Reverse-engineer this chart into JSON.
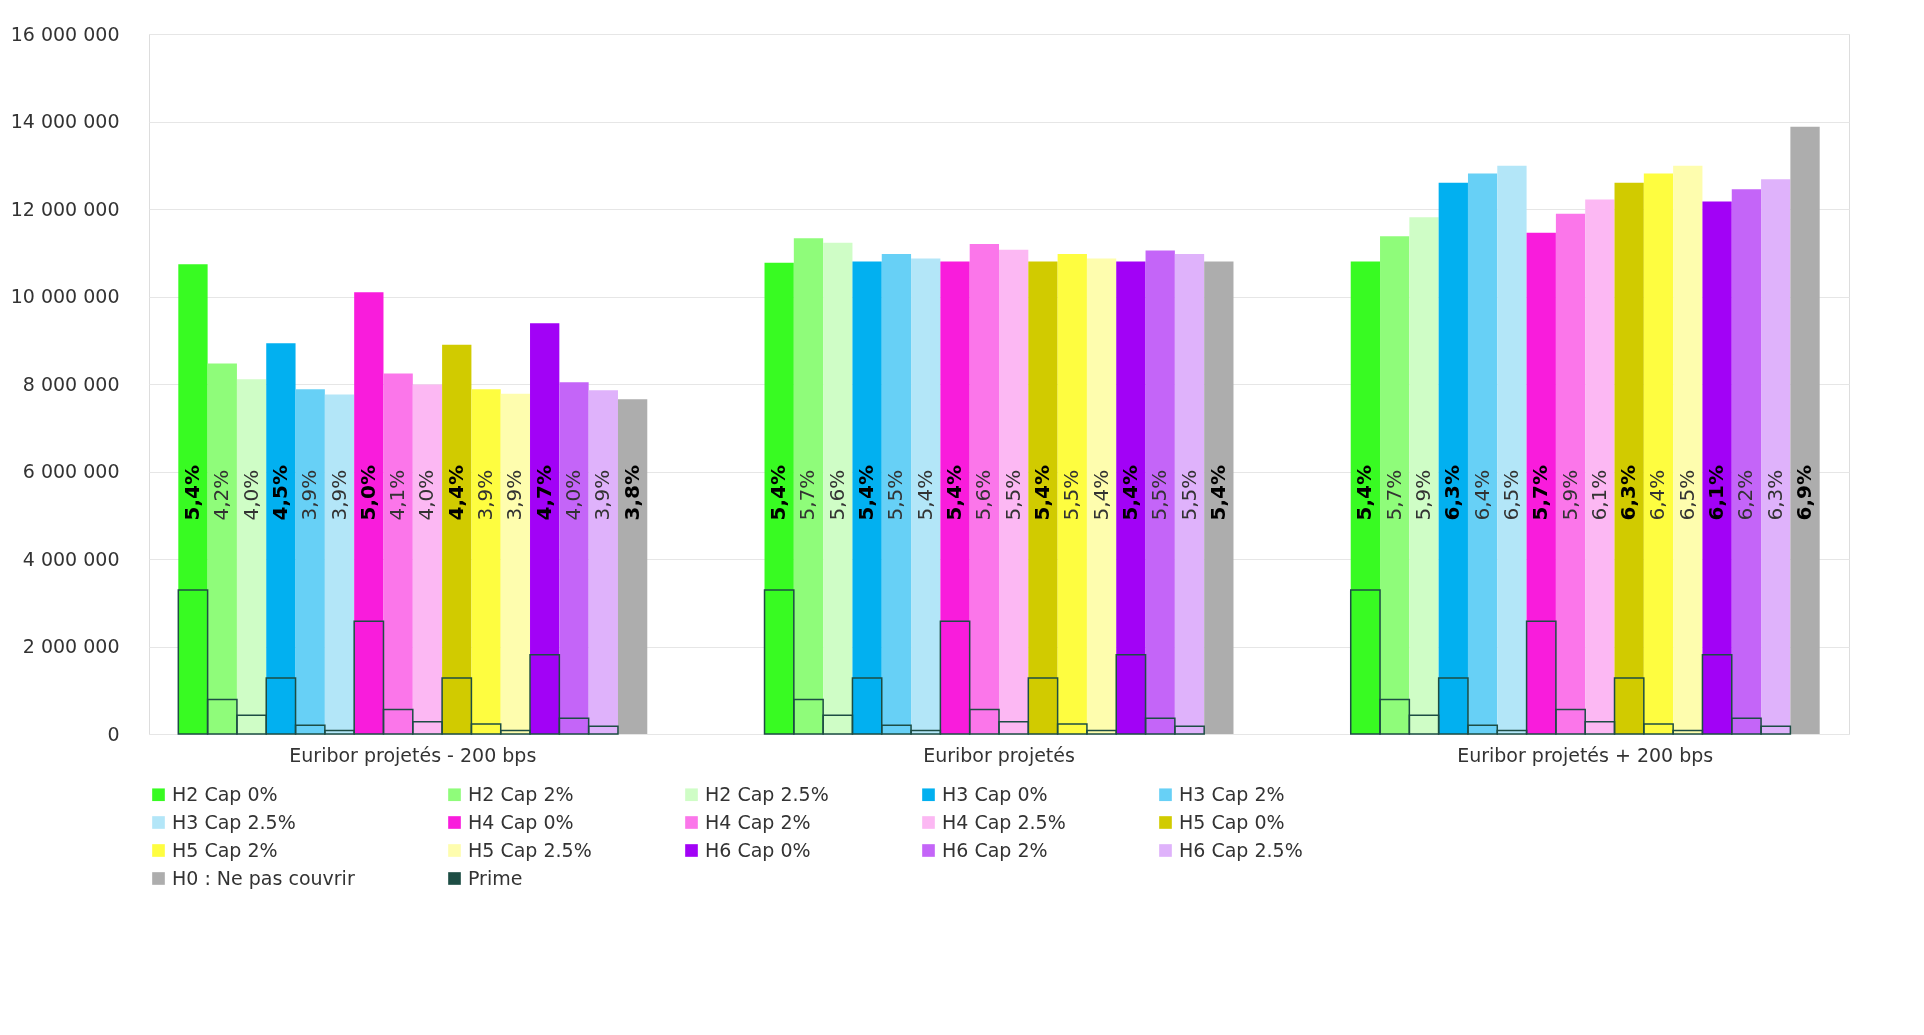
{
  "chart_data": {
    "type": "bar",
    "categories": [
      "Euribor projetés - 200 bps",
      "Euribor projetés",
      "Euribor projetés + 200 bps"
    ],
    "ylim": [
      0,
      16000000
    ],
    "yticks": [
      {
        "value": 0,
        "label": "0"
      },
      {
        "value": 2000000,
        "label": "2 000 000"
      },
      {
        "value": 4000000,
        "label": "4 000 000"
      },
      {
        "value": 6000000,
        "label": "6 000 000"
      },
      {
        "value": 8000000,
        "label": "8 000 000"
      },
      {
        "value": 10000000,
        "label": "10 000 000"
      },
      {
        "value": 12000000,
        "label": "12 000 000"
      },
      {
        "value": 14000000,
        "label": "14 000 000"
      },
      {
        "value": 16000000,
        "label": "16 000 000"
      }
    ],
    "grid": "y",
    "legend": "bottom",
    "annotations": [
      "5,4%",
      "4,2%",
      "4,0%",
      "4,5%",
      "3,9%",
      "3,9%",
      "5,0%",
      "4,1%",
      "4,0%",
      "4,4%",
      "3,9%",
      "3,9%",
      "4,7%",
      "4,0%",
      "3,9%",
      "3,8%",
      "5,4%",
      "5,7%",
      "5,6%",
      "5,4%",
      "5,5%",
      "5,4%",
      "5,4%",
      "5,6%",
      "5,5%",
      "5,4%",
      "5,5%",
      "5,4%",
      "5,4%",
      "5,5%",
      "5,5%",
      "5,4%",
      "5,4%",
      "5,7%",
      "5,9%",
      "6,3%",
      "6,4%",
      "6,5%",
      "5,7%",
      "5,9%",
      "6,1%",
      "6,3%",
      "6,4%",
      "6,5%",
      "6,1%",
      "6,2%",
      "6,3%",
      "6,9%"
    ],
    "series": [
      {
        "name": "H2 Cap 0%",
        "color": "#38fb22",
        "values": [
          10740000,
          10770000,
          10800000
        ]
      },
      {
        "name": "H2 Cap 2%",
        "color": "#8ffc7a",
        "values": [
          8470000,
          11330000,
          11380000
        ]
      },
      {
        "name": "H2 Cap 2.5%",
        "color": "#cffdc6",
        "values": [
          8110000,
          11230000,
          11810000
        ]
      },
      {
        "name": "H3 Cap 0%",
        "color": "#02b0f0",
        "values": [
          8930000,
          10800000,
          12600000
        ]
      },
      {
        "name": "H3 Cap 2%",
        "color": "#67d0f6",
        "values": [
          7880000,
          10970000,
          12810000
        ]
      },
      {
        "name": "H3 Cap 2.5%",
        "color": "#b3e6f8",
        "values": [
          7760000,
          10870000,
          12990000
        ]
      },
      {
        "name": "H4 Cap 0%",
        "color": "#f91cdc",
        "values": [
          10100000,
          10800000,
          11460000
        ]
      },
      {
        "name": "H4 Cap 2%",
        "color": "#fb76ea",
        "values": [
          8240000,
          11200000,
          11890000
        ]
      },
      {
        "name": "H4 Cap 2.5%",
        "color": "#fcb8f3",
        "values": [
          7990000,
          11070000,
          12220000
        ]
      },
      {
        "name": "H5 Cap 0%",
        "color": "#d1cb00",
        "values": [
          8900000,
          10800000,
          12600000
        ]
      },
      {
        "name": "H5 Cap 2%",
        "color": "#fefd40",
        "values": [
          7880000,
          10970000,
          12810000
        ]
      },
      {
        "name": "H5 Cap 2.5%",
        "color": "#fefdae",
        "values": [
          7780000,
          10870000,
          12990000
        ]
      },
      {
        "name": "H6 Cap 0%",
        "color": "#a202f6",
        "values": [
          9390000,
          10800000,
          12170000
        ]
      },
      {
        "name": "H6 Cap 2%",
        "color": "#c465f8",
        "values": [
          8040000,
          11050000,
          12450000
        ]
      },
      {
        "name": "H6 Cap 2.5%",
        "color": "#dfb2fb",
        "values": [
          7860000,
          10970000,
          12680000
        ]
      },
      {
        "name": "H0 : Ne pas couvrir",
        "color": "#adadad",
        "values": [
          7650000,
          10800000,
          13880000
        ]
      },
      {
        "name": "Prime",
        "color": "#1d4d44",
        "values": [
          3290000,
          3290000,
          3290000
        ]
      },
      {
        "color": "#1d4d44",
        "values": [
          790000,
          790000,
          790000
        ]
      },
      {
        "color": "#1d4d44",
        "values": [
          430000,
          430000,
          430000
        ]
      },
      {
        "color": "#1d4d44",
        "values": [
          1280000,
          1280000,
          1280000
        ]
      },
      {
        "color": "#1d4d44",
        "values": [
          200000,
          200000,
          200000
        ]
      },
      {
        "color": "#1d4d44",
        "values": [
          80000,
          80000,
          80000
        ]
      },
      {
        "color": "#1d4d44",
        "values": [
          2580000,
          2580000,
          2580000
        ]
      },
      {
        "color": "#1d4d44",
        "values": [
          560000,
          560000,
          560000
        ]
      },
      {
        "color": "#1d4d44",
        "values": [
          280000,
          280000,
          280000
        ]
      },
      {
        "color": "#1d4d44",
        "values": [
          1280000,
          1280000,
          1280000
        ]
      },
      {
        "color": "#1d4d44",
        "values": [
          230000,
          230000,
          230000
        ]
      },
      {
        "color": "#1d4d44",
        "values": [
          80000,
          80000,
          80000
        ]
      },
      {
        "color": "#1d4d44",
        "values": [
          1810000,
          1810000,
          1810000
        ]
      },
      {
        "color": "#1d4d44",
        "values": [
          360000,
          360000,
          360000
        ]
      },
      {
        "color": "#1d4d44",
        "values": [
          180000,
          180000,
          180000
        ]
      }
    ]
  }
}
